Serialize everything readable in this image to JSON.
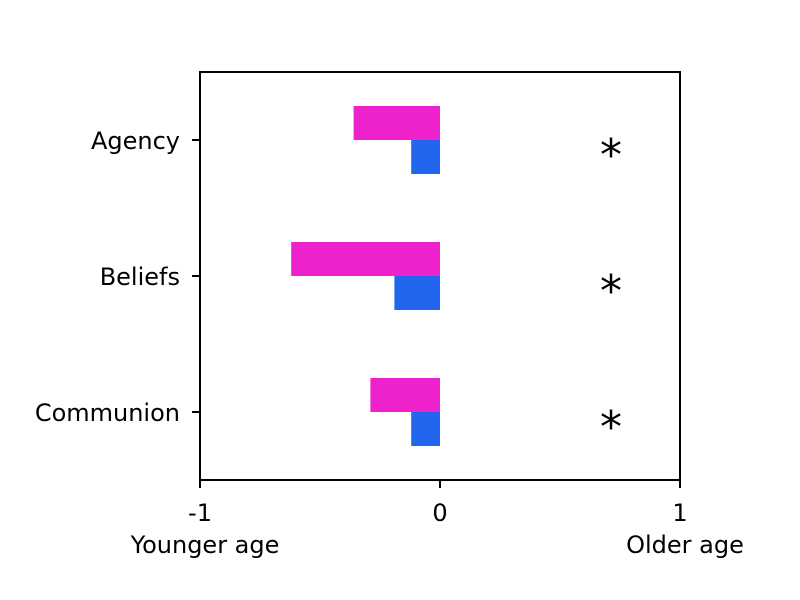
{
  "chart_data": {
    "type": "bar",
    "orientation": "horizontal",
    "categories": [
      "Agency",
      "Beliefs",
      "Communion"
    ],
    "series": [
      {
        "color": "#ee22cc",
        "values": [
          -0.36,
          -0.62,
          -0.29
        ]
      },
      {
        "color": "#2266ee",
        "values": [
          -0.12,
          -0.19,
          -0.12
        ]
      }
    ],
    "xlim": [
      -1,
      1
    ],
    "xticks": [
      {
        "value": -1,
        "label": "-1"
      },
      {
        "value": 0,
        "label": "0"
      },
      {
        "value": 1,
        "label": "1"
      }
    ],
    "x_side_labels": {
      "left": "Younger age",
      "right": "Older age"
    },
    "annotations": [
      {
        "category": "Agency",
        "text": "*"
      },
      {
        "category": "Beliefs",
        "text": "*"
      },
      {
        "category": "Communion",
        "text": "*"
      }
    ],
    "legend": "none",
    "grid": false
  }
}
